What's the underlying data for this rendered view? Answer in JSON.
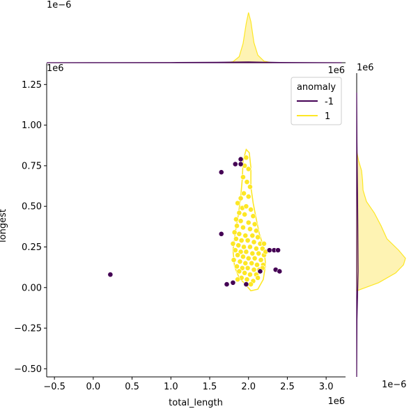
{
  "chart_data": {
    "type": "scatter",
    "title": "",
    "xlabel": "total_length",
    "ylabel": "longest",
    "x_offset_text": "1e6",
    "y_offset_text": "1e6",
    "xlim": [
      -0.6,
      3.25
    ],
    "ylim": [
      -0.55,
      1.38
    ],
    "x_ticks": [
      -0.5,
      0.0,
      0.5,
      1.0,
      1.5,
      2.0,
      2.5,
      3.0
    ],
    "x_tick_labels": [
      "−0.5",
      "0.0",
      "0.5",
      "1.0",
      "1.5",
      "2.0",
      "2.5",
      "3.0"
    ],
    "y_ticks": [
      -0.5,
      -0.25,
      0.0,
      0.25,
      0.5,
      0.75,
      1.0,
      1.25
    ],
    "y_tick_labels": [
      "−0.50",
      "−0.25",
      "0.00",
      "0.25",
      "0.50",
      "0.75",
      "1.00",
      "1.25"
    ],
    "grid": false,
    "legend": {
      "title": "anomaly",
      "placement": "top-right",
      "entries": [
        {
          "label": "-1",
          "color": "#440154"
        },
        {
          "label": "1",
          "color": "#fde725"
        }
      ]
    },
    "colors": {
      "anomaly": "#440154",
      "normal": "#fde725",
      "normal_edge": "#f5dc1e",
      "kde_fill": "#fef3b3"
    },
    "series": [
      {
        "name": "-1",
        "points": [
          [
            0.22,
            0.08
          ],
          [
            1.65,
            0.71
          ],
          [
            1.65,
            0.33
          ],
          [
            1.72,
            0.02
          ],
          [
            1.8,
            0.03
          ],
          [
            1.83,
            0.76
          ],
          [
            1.9,
            0.79
          ],
          [
            1.9,
            0.76
          ],
          [
            1.97,
            0.02
          ],
          [
            2.27,
            0.23
          ],
          [
            2.33,
            0.23
          ],
          [
            2.38,
            0.23
          ],
          [
            2.35,
            0.11
          ],
          [
            2.4,
            0.1
          ],
          [
            2.15,
            0.1
          ]
        ]
      },
      {
        "name": "1",
        "points": [
          [
            1.97,
            0.8
          ],
          [
            1.95,
            0.75
          ],
          [
            2.0,
            0.73
          ],
          [
            1.93,
            0.68
          ],
          [
            1.98,
            0.65
          ],
          [
            2.02,
            0.62
          ],
          [
            1.94,
            0.58
          ],
          [
            1.9,
            0.55
          ],
          [
            2.0,
            0.56
          ],
          [
            1.86,
            0.52
          ],
          [
            1.92,
            0.49
          ],
          [
            1.97,
            0.5
          ],
          [
            2.03,
            0.48
          ],
          [
            1.88,
            0.46
          ],
          [
            1.95,
            0.45
          ],
          [
            2.06,
            0.44
          ],
          [
            1.84,
            0.42
          ],
          [
            1.9,
            0.41
          ],
          [
            2.0,
            0.4
          ],
          [
            2.08,
            0.39
          ],
          [
            1.85,
            0.38
          ],
          [
            1.93,
            0.37
          ],
          [
            2.02,
            0.36
          ],
          [
            2.1,
            0.35
          ],
          [
            1.82,
            0.34
          ],
          [
            1.88,
            0.33
          ],
          [
            1.96,
            0.32
          ],
          [
            2.05,
            0.32
          ],
          [
            2.12,
            0.31
          ],
          [
            1.84,
            0.3
          ],
          [
            1.91,
            0.29
          ],
          [
            1.99,
            0.29
          ],
          [
            2.07,
            0.28
          ],
          [
            2.15,
            0.27
          ],
          [
            1.8,
            0.27
          ],
          [
            1.87,
            0.26
          ],
          [
            1.94,
            0.25
          ],
          [
            2.02,
            0.25
          ],
          [
            2.1,
            0.24
          ],
          [
            2.18,
            0.24
          ],
          [
            1.83,
            0.23
          ],
          [
            1.9,
            0.22
          ],
          [
            1.97,
            0.22
          ],
          [
            2.05,
            0.21
          ],
          [
            2.13,
            0.21
          ],
          [
            2.2,
            0.2
          ],
          [
            1.86,
            0.2
          ],
          [
            1.93,
            0.19
          ],
          [
            2.0,
            0.18
          ],
          [
            2.08,
            0.18
          ],
          [
            2.16,
            0.17
          ],
          [
            1.81,
            0.17
          ],
          [
            1.89,
            0.16
          ],
          [
            1.96,
            0.15
          ],
          [
            2.04,
            0.15
          ],
          [
            2.11,
            0.14
          ],
          [
            2.19,
            0.14
          ],
          [
            1.85,
            0.13
          ],
          [
            1.92,
            0.12
          ],
          [
            1.99,
            0.12
          ],
          [
            2.07,
            0.11
          ],
          [
            2.14,
            0.11
          ],
          [
            1.88,
            0.1
          ],
          [
            1.95,
            0.09
          ],
          [
            2.02,
            0.08
          ],
          [
            2.1,
            0.08
          ],
          [
            1.91,
            0.06
          ],
          [
            1.98,
            0.05
          ],
          [
            2.06,
            0.04
          ],
          [
            2.2,
            0.27
          ],
          [
            2.22,
            0.22
          ],
          [
            2.18,
            0.12
          ],
          [
            2.12,
            0.06
          ],
          [
            1.86,
            0.05
          ],
          [
            2.03,
            0.02
          ]
        ]
      }
    ],
    "kde_contour": [
      [
        1.97,
        0.85
      ],
      [
        2.01,
        0.83
      ],
      [
        2.03,
        0.74
      ],
      [
        2.03,
        0.62
      ],
      [
        2.06,
        0.52
      ],
      [
        2.1,
        0.42
      ],
      [
        2.14,
        0.33
      ],
      [
        2.2,
        0.24
      ],
      [
        2.22,
        0.14
      ],
      [
        2.19,
        0.05
      ],
      [
        2.12,
        -0.01
      ],
      [
        2.03,
        -0.02
      ],
      [
        1.96,
        0.02
      ],
      [
        1.88,
        0.06
      ],
      [
        1.82,
        0.13
      ],
      [
        1.8,
        0.23
      ],
      [
        1.83,
        0.34
      ],
      [
        1.87,
        0.45
      ],
      [
        1.9,
        0.56
      ],
      [
        1.92,
        0.67
      ],
      [
        1.93,
        0.78
      ],
      [
        1.97,
        0.85
      ]
    ],
    "marginal_x": {
      "offset_text": "1e−6",
      "curves": [
        {
          "name": "1",
          "x": [
            1.7,
            1.8,
            1.88,
            1.93,
            1.97,
            2.0,
            2.03,
            2.07,
            2.12,
            2.2,
            2.3
          ],
          "density": [
            0.0,
            0.02,
            0.12,
            0.38,
            0.78,
            1.0,
            0.82,
            0.4,
            0.15,
            0.03,
            0.0
          ]
        },
        {
          "name": "-1",
          "x": [
            -0.6,
            0.2,
            1.0,
            1.6,
            2.0,
            2.4,
            3.2
          ],
          "density": [
            0.0,
            0.003,
            0.004,
            0.01,
            0.015,
            0.006,
            0.0
          ]
        }
      ]
    },
    "marginal_y": {
      "offset_text": "1e−6",
      "curves": [
        {
          "name": "1",
          "y": [
            -0.02,
            0.03,
            0.09,
            0.14,
            0.18,
            0.23,
            0.3,
            0.38,
            0.46,
            0.53,
            0.6,
            0.66,
            0.72,
            0.78,
            0.84
          ],
          "density": [
            0.0,
            0.45,
            0.8,
            0.96,
            1.0,
            0.86,
            0.62,
            0.5,
            0.36,
            0.2,
            0.13,
            0.12,
            0.1,
            0.04,
            0.0
          ]
        },
        {
          "name": "-1",
          "y": [
            -0.55,
            -0.2,
            0.1,
            0.5,
            0.9,
            1.2
          ],
          "density": [
            0.0,
            0.005,
            0.03,
            0.02,
            0.005,
            0.0
          ]
        }
      ]
    }
  }
}
